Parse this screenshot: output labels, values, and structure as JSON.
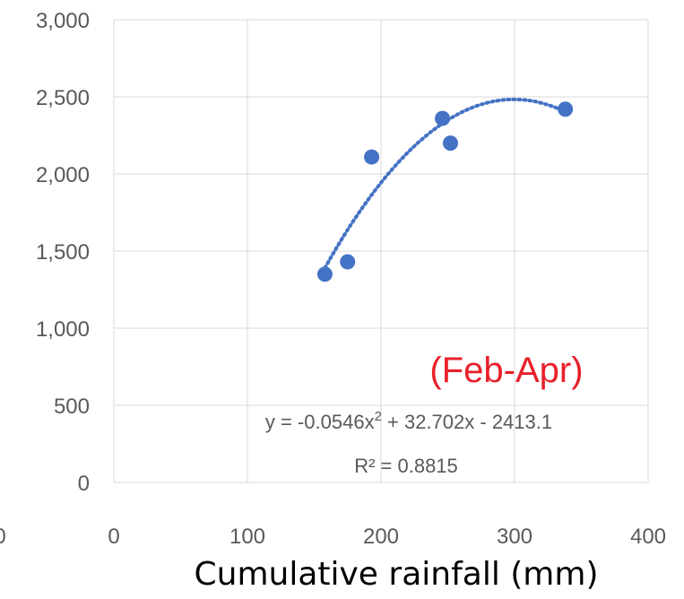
{
  "chart_data": {
    "type": "scatter",
    "title": "",
    "xlabel": "Cumulative rainfall (mm)",
    "ylabel": "",
    "xlim": [
      0,
      400
    ],
    "ylim": [
      0,
      3000
    ],
    "x_ticks": [
      "0",
      "100",
      "200",
      "300",
      "400"
    ],
    "y_ticks": [
      "0",
      "500",
      "1,000",
      "1,500",
      "2,000",
      "2,500",
      "3,000"
    ],
    "edge_tick_fragment": "0",
    "grid": true,
    "series": [
      {
        "points": [
          {
            "x": 158,
            "y": 1350
          },
          {
            "x": 175,
            "y": 1430
          },
          {
            "x": 193,
            "y": 2110
          },
          {
            "x": 246,
            "y": 2360
          },
          {
            "x": 252,
            "y": 2200
          },
          {
            "x": 338,
            "y": 2420
          }
        ]
      }
    ],
    "trendline": {
      "type": "polynomial-2",
      "a": -0.0546,
      "b": 32.702,
      "c": -2413.1,
      "x_range": [
        158,
        338
      ],
      "equation_prefix": "y = -0.0546x",
      "equation_sup": "2",
      "equation_suffix": " + 32.702x - 2413.1",
      "r2_label": "R² = 0.8815"
    },
    "annotation": "(Feb-Apr)",
    "colors": {
      "marker": "#4472C4",
      "trendline": "#4472C4",
      "annotation": "#E8202A",
      "grid": "#D9D9D9"
    }
  }
}
